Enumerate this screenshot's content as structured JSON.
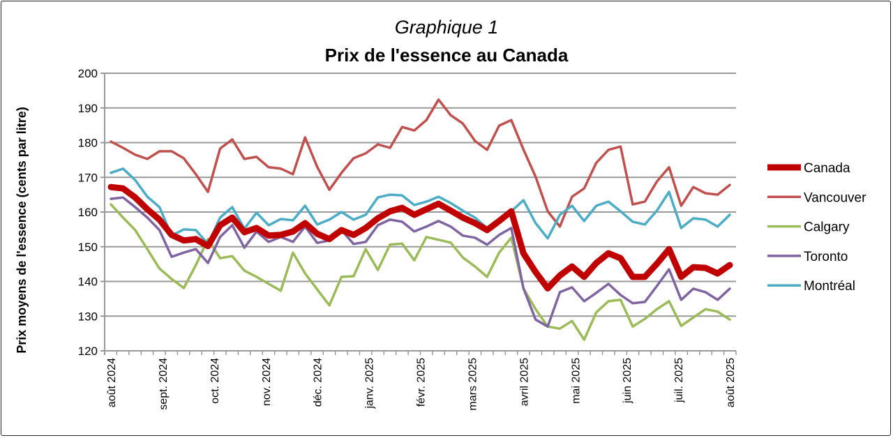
{
  "chart_data": {
    "type": "line",
    "subtitle": "Graphique 1",
    "title": "Prix de l'essence au Canada",
    "xlabel": "",
    "ylabel": "Prix moyens de l'essence (cents par litre)",
    "ylim": [
      120,
      200
    ],
    "yticks": [
      120,
      130,
      140,
      150,
      160,
      170,
      180,
      190,
      200
    ],
    "grid": "horizontal",
    "legend_position": "right",
    "x_tick_labels": [
      "août 2024",
      "sept. 2024",
      "oct. 2024",
      "nov. 2024",
      "déc. 2024",
      "janv. 2025",
      "févr. 2025",
      "mars 2025",
      "avril 2025",
      "mai 2025",
      "juin 2025",
      "juil. 2025",
      "août 2025"
    ],
    "x_frequency": "weekly",
    "series": [
      {
        "name": "Canada",
        "color": "#c00000",
        "values": [
          167.2,
          166.8,
          164.2,
          160.8,
          157.8,
          153.4,
          151.8,
          152.2,
          150.2,
          156.2,
          158.4,
          154.2,
          155.4,
          153.2,
          153.4,
          154.4,
          156.8,
          153.7,
          152.2,
          154.8,
          153.4,
          155.4,
          158.2,
          160.2,
          161.2,
          159.2,
          160.8,
          162.4,
          160.4,
          158.4,
          156.8,
          154.8,
          157.4,
          160.2,
          148.1,
          142.7,
          138.0,
          141.7,
          144.3,
          141.3,
          145.3,
          148.1,
          146.7,
          141.3,
          141.3,
          145.1,
          149.3,
          141.3,
          144.1,
          143.9,
          142.3,
          144.7
        ]
      },
      {
        "name": "Vancouver",
        "color": "#c0504d",
        "values": [
          180.3,
          178.5,
          176.5,
          175.3,
          177.5,
          177.5,
          175.5,
          170.9,
          165.8,
          178.3,
          180.9,
          175.3,
          175.9,
          172.9,
          172.5,
          170.9,
          181.5,
          173.0,
          166.4,
          171.3,
          175.5,
          176.9,
          179.5,
          178.5,
          184.5,
          183.5,
          186.5,
          192.4,
          187.9,
          185.5,
          180.5,
          177.9,
          184.9,
          186.5,
          178.0,
          170.2,
          160.2,
          155.8,
          164.4,
          166.8,
          174.2,
          177.9,
          178.9,
          162.2,
          163.0,
          168.8,
          172.9,
          161.8,
          167.2,
          165.4,
          165.0,
          167.8
        ]
      },
      {
        "name": "Calgary",
        "color": "#9bbb59",
        "values": [
          162.2,
          158.4,
          154.8,
          149.3,
          143.7,
          140.7,
          138.1,
          144.7,
          152.2,
          146.7,
          147.3,
          143.1,
          141.3,
          139.3,
          137.3,
          148.3,
          142.3,
          137.7,
          133.1,
          141.3,
          141.5,
          149.3,
          143.3,
          150.6,
          150.9,
          146.1,
          152.8,
          152.0,
          151.2,
          146.9,
          144.3,
          141.3,
          148.3,
          152.6,
          138.0,
          132.0,
          127.0,
          126.4,
          128.6,
          123.2,
          131.1,
          134.3,
          134.7,
          127.0,
          129.2,
          132.0,
          134.3,
          127.2,
          129.6,
          132.0,
          131.3,
          129.0
        ]
      },
      {
        "name": "Toronto",
        "color": "#8064a2",
        "values": [
          163.8,
          164.2,
          161.4,
          158.4,
          154.8,
          147.1,
          148.3,
          149.3,
          145.3,
          152.8,
          156.2,
          149.7,
          154.4,
          151.4,
          152.8,
          151.4,
          155.8,
          151.1,
          151.8,
          154.8,
          150.8,
          151.4,
          156.2,
          157.8,
          157.2,
          154.4,
          155.8,
          157.4,
          155.8,
          153.2,
          152.6,
          150.6,
          153.4,
          155.4,
          138.0,
          129.0,
          127.0,
          136.9,
          138.3,
          134.3,
          136.7,
          139.3,
          136.1,
          133.7,
          134.1,
          138.7,
          143.5,
          134.7,
          137.9,
          136.9,
          134.7,
          137.9
        ]
      },
      {
        "name": "Montréal",
        "color": "#4bacc6",
        "values": [
          171.3,
          172.5,
          169.2,
          164.4,
          161.4,
          153.2,
          155.0,
          154.8,
          150.8,
          158.4,
          161.4,
          155.2,
          159.8,
          156.2,
          158.0,
          157.6,
          161.8,
          156.4,
          157.8,
          160.0,
          157.8,
          159.2,
          164.2,
          165.0,
          164.8,
          162.0,
          163.0,
          164.4,
          162.6,
          160.4,
          158.4,
          155.4,
          157.8,
          160.2,
          163.4,
          156.8,
          152.4,
          159.2,
          161.8,
          157.4,
          161.8,
          163.0,
          160.2,
          157.2,
          156.4,
          160.4,
          165.8,
          155.4,
          158.2,
          157.8,
          155.8,
          159.2
        ]
      }
    ]
  }
}
